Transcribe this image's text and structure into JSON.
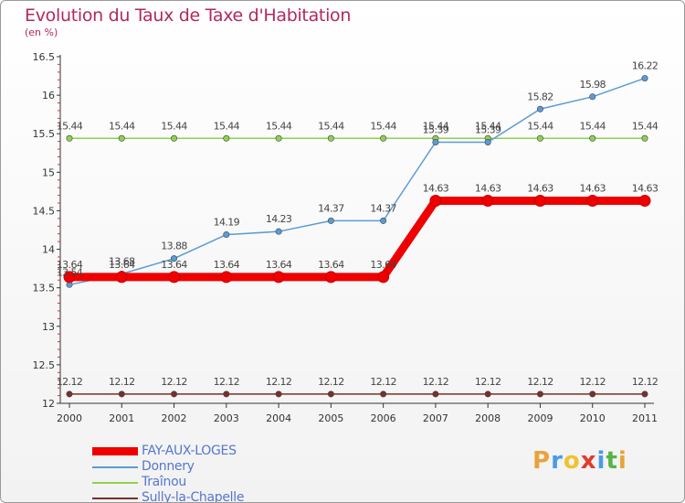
{
  "title": "Evolution du Taux de Taxe d'Habitation",
  "subtitle": "(en %)",
  "brand": {
    "letters": [
      "P",
      "r",
      "o",
      "x",
      "i",
      "t",
      "i"
    ],
    "colors": [
      "#e8a33a",
      "#4a9be8",
      "#f2c22c",
      "#e23b2e",
      "#4a9be8",
      "#55b544",
      "#e8a33a"
    ]
  },
  "chart_data": {
    "type": "line",
    "title": "Evolution du Taux de Taxe d'Habitation",
    "ylabel": "(en %)",
    "xlabel": "",
    "x": [
      "2000",
      "2001",
      "2002",
      "2003",
      "2004",
      "2005",
      "2006",
      "2007",
      "2008",
      "2009",
      "2010",
      "2011"
    ],
    "ylim": [
      12,
      16.5
    ],
    "yticks": [
      "12",
      "12.5",
      "13",
      "13.5",
      "14",
      "14.5",
      "15",
      "15.5",
      "16",
      "16.5"
    ],
    "grid": false,
    "legend_position": "bottom-left",
    "series": [
      {
        "name": "FAY-AUX-LOGES",
        "color": "#ee0000",
        "values": [
          13.64,
          13.64,
          13.64,
          13.64,
          13.64,
          13.64,
          13.64,
          14.63,
          14.63,
          14.63,
          14.63,
          14.63
        ],
        "labels": [
          "13.64",
          "13.64",
          "13.64",
          "13.64",
          "13.64",
          "13.64",
          "13.64",
          "14.63",
          "14.63",
          "14.63",
          "14.63",
          "14.63"
        ]
      },
      {
        "name": "Donnery",
        "color": "#5b9bd5",
        "values": [
          13.54,
          13.68,
          13.88,
          14.19,
          14.23,
          14.37,
          14.37,
          15.39,
          15.39,
          15.82,
          15.98,
          16.22
        ],
        "labels": [
          "13.54",
          "13.68",
          "13.88",
          "14.19",
          "14.23",
          "14.37",
          "14.37",
          "15.39",
          "15.39",
          "15.82",
          "15.98",
          "16.22"
        ]
      },
      {
        "name": "Traînou",
        "color": "#8fd14f",
        "values": [
          15.44,
          15.44,
          15.44,
          15.44,
          15.44,
          15.44,
          15.44,
          15.44,
          15.44,
          15.44,
          15.44,
          15.44
        ],
        "labels": [
          "15.44",
          "15.44",
          "15.44",
          "15.44",
          "15.44",
          "15.44",
          "15.44",
          "15.44",
          "15.44",
          "15.44",
          "15.44",
          "15.44"
        ]
      },
      {
        "name": "Sully-la-Chapelle",
        "color": "#7a2e2e",
        "values": [
          12.12,
          12.12,
          12.12,
          12.12,
          12.12,
          12.12,
          12.12,
          12.12,
          12.12,
          12.12,
          12.12,
          12.12
        ],
        "labels": [
          "12.12",
          "12.12",
          "12.12",
          "12.12",
          "12.12",
          "12.12",
          "12.12",
          "12.12",
          "12.12",
          "12.12",
          "12.12",
          "12.12"
        ]
      }
    ]
  }
}
